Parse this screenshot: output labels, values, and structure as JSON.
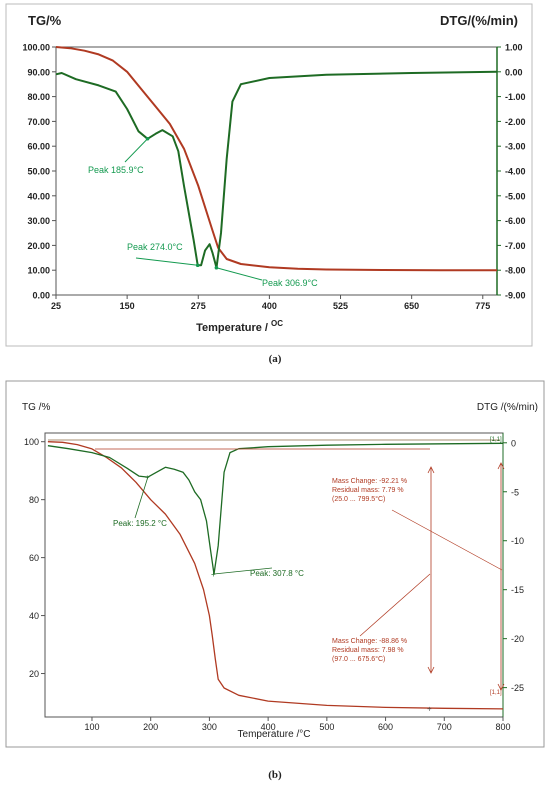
{
  "colors": {
    "tg": "#b03a22",
    "dtg": "#1e6b24",
    "anno": "#149a50",
    "frame": "#999999"
  },
  "chart_data": [
    {
      "type": "line",
      "caption": "(a)",
      "left_axis_label": "TG/%",
      "right_axis_label": "DTG/(%/min)",
      "xlabel": "Temperature /",
      "xlabel_unit": "OC",
      "xlim": [
        25,
        800
      ],
      "ylim_left": [
        0,
        100
      ],
      "ylim_right": [
        -9,
        1
      ],
      "x_ticks": [
        "25",
        "150",
        "275",
        "400",
        "525",
        "650",
        "775"
      ],
      "y_ticks_left": [
        "0.00",
        "10.00",
        "20.00",
        "30.00",
        "40.00",
        "50.00",
        "60.00",
        "70.00",
        "80.00",
        "90.00",
        "100.00"
      ],
      "y_ticks_right": [
        "-9.00",
        "-8.00",
        "-7.00",
        "-6.00",
        "-5.00",
        "-4.00",
        "-3.00",
        "-2.00",
        "-1.00",
        "0.00",
        "1.00"
      ],
      "series": [
        {
          "axis": "left",
          "color": "#b03a22",
          "x": [
            25,
            50,
            75,
            100,
            125,
            150,
            175,
            200,
            225,
            250,
            275,
            300,
            310,
            325,
            350,
            400,
            450,
            500,
            600,
            700,
            800
          ],
          "y": [
            100,
            99.5,
            98.5,
            97,
            94.5,
            90,
            83,
            76,
            69,
            59,
            44,
            26,
            19,
            14.5,
            12.5,
            11.2,
            10.6,
            10.3,
            10.1,
            10,
            10
          ]
        },
        {
          "axis": "right",
          "color": "#1e6b24",
          "x": [
            25,
            35,
            60,
            100,
            130,
            150,
            170,
            186,
            200,
            212,
            230,
            240,
            250,
            260,
            267,
            274,
            280,
            287,
            295,
            300,
            307,
            315,
            325,
            335,
            350,
            400,
            500,
            650,
            800
          ],
          "y": [
            -0.1,
            -0.05,
            -0.3,
            -0.55,
            -0.8,
            -1.5,
            -2.4,
            -2.7,
            -2.5,
            -2.35,
            -2.6,
            -3.2,
            -4.6,
            -5.9,
            -6.8,
            -7.8,
            -7.8,
            -7.2,
            -6.95,
            -7.3,
            -7.9,
            -6.5,
            -3.5,
            -1.2,
            -0.5,
            -0.25,
            -0.12,
            -0.05,
            0.0
          ]
        }
      ],
      "annotations": [
        {
          "text": "Peak 185.9°C",
          "x": 185.9,
          "y": -2.7
        },
        {
          "text": "Peak 274.0°C",
          "x": 274.0,
          "y": -7.8
        },
        {
          "text": "Peak 306.9°C",
          "x": 306.9,
          "y": -7.9
        }
      ]
    },
    {
      "type": "line",
      "caption": "(b)",
      "left_axis_label": "TG /%",
      "right_axis_label": "DTG /(%/min)",
      "xlabel": "Temperature /°C",
      "xlim": [
        20,
        800
      ],
      "ylim_left": [
        5,
        103
      ],
      "ylim_right": [
        -28,
        1
      ],
      "x_ticks": [
        "100",
        "200",
        "300",
        "400",
        "500",
        "600",
        "700",
        "800"
      ],
      "y_ticks_left": [
        "20",
        "40",
        "60",
        "80",
        "100"
      ],
      "y_ticks_right": [
        "0",
        "-5",
        "-10",
        "-15",
        "-20",
        "-25"
      ],
      "series": [
        {
          "axis": "left",
          "color": "#b03a22",
          "x": [
            25,
            50,
            75,
            100,
            125,
            150,
            175,
            200,
            225,
            250,
            275,
            290,
            300,
            305,
            310,
            315,
            325,
            350,
            400,
            500,
            600,
            700,
            800
          ],
          "y": [
            100,
            99.8,
            99,
            97.5,
            94.5,
            91,
            86,
            80,
            75,
            68,
            58,
            49,
            40,
            33,
            25,
            18,
            15,
            12.5,
            10.5,
            9,
            8.3,
            8,
            7.8
          ]
        },
        {
          "axis": "right",
          "color": "#1e6b24",
          "x": [
            25,
            60,
            100,
            130,
            160,
            180,
            195.2,
            210,
            225,
            240,
            255,
            265,
            275,
            285,
            295,
            302,
            307.8,
            315,
            325,
            335,
            350,
            400,
            500,
            600,
            700,
            800
          ],
          "y": [
            -0.3,
            -0.6,
            -1.0,
            -1.5,
            -2.6,
            -3.4,
            -3.5,
            -3.0,
            -2.5,
            -2.7,
            -3.0,
            -3.8,
            -5.0,
            -5.8,
            -8.0,
            -11.0,
            -13.4,
            -10.5,
            -3.0,
            -1.0,
            -0.6,
            -0.4,
            -0.25,
            -0.15,
            -0.1,
            -0.05
          ]
        }
      ],
      "annotations": [
        {
          "text": "Peak: 195.2 °C",
          "x": 195.2,
          "y": -3.5
        },
        {
          "text": "Peak: 307.8 °C",
          "x": 307.8,
          "y": -13.4
        },
        {
          "text": "[1,1]",
          "x": 800,
          "y": 0
        },
        {
          "text": "[1,1]",
          "x": 800,
          "y": 7.8
        }
      ],
      "mass_change_boxes": [
        {
          "lines": [
            "Mass Change:  -92.21 %",
            "Residual mass:   7.79 %",
            "(25.0 ... 799.5°C)"
          ]
        },
        {
          "lines": [
            "Mass Change:  -88.86 %",
            "Residual mass:   7.98 %",
            "(97.0 ... 675.6°C)"
          ]
        }
      ]
    }
  ]
}
